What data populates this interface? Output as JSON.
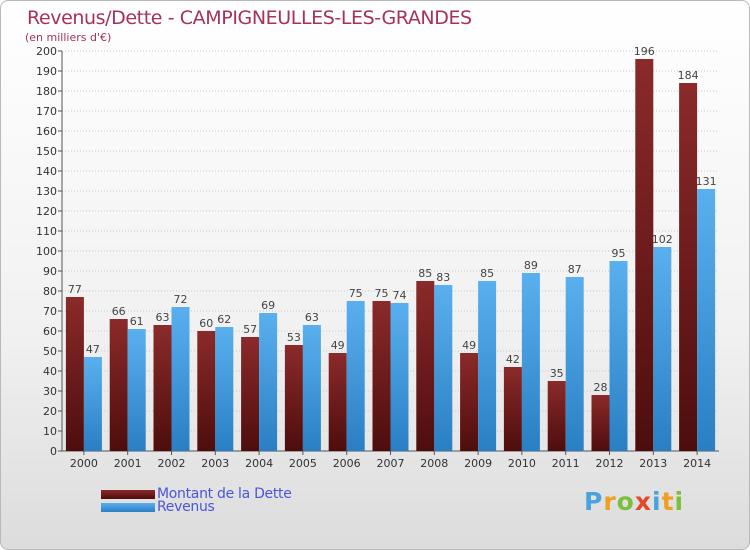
{
  "title": "Revenus/Dette - CAMPIGNEULLES-LES-GRANDES",
  "subtitle": "(en milliers d'€)",
  "colors": {
    "dette": "#7a1f1f",
    "revenus": "#3d9be0",
    "title": "#a6315a",
    "legend_text": "#4b55d8"
  },
  "logo": {
    "text": "Proxiti",
    "letters": [
      {
        "ch": "P",
        "color": "#4aa3df"
      },
      {
        "ch": "r",
        "color": "#f0a020"
      },
      {
        "ch": "o",
        "color": "#7cbf3a"
      },
      {
        "ch": "x",
        "color": "#e04a2a"
      },
      {
        "ch": "i",
        "color": "#4aa3df"
      },
      {
        "ch": "t",
        "color": "#f0a020"
      },
      {
        "ch": "i",
        "color": "#7cbf3a"
      }
    ]
  },
  "chart_data": {
    "type": "bar",
    "title": "Revenus/Dette - CAMPIGNEULLES-LES-GRANDES",
    "ylabel": "(en milliers d'€)",
    "ylim": [
      0,
      200
    ],
    "yticks": [
      0,
      10,
      20,
      30,
      40,
      50,
      60,
      70,
      80,
      90,
      100,
      110,
      120,
      130,
      140,
      150,
      160,
      170,
      180,
      190,
      200
    ],
    "grid": "horizontal dotted",
    "legend_position": "bottom-left",
    "categories": [
      "2000",
      "2001",
      "2002",
      "2003",
      "2004",
      "2005",
      "2006",
      "2007",
      "2008",
      "2009",
      "2010",
      "2011",
      "2012",
      "2013",
      "2014"
    ],
    "series": [
      {
        "name": "Montant de la Dette",
        "values": [
          77,
          66,
          63,
          60,
          57,
          53,
          49,
          75,
          85,
          49,
          42,
          35,
          28,
          196,
          184
        ]
      },
      {
        "name": "Revenus",
        "values": [
          47,
          61,
          72,
          62,
          69,
          63,
          75,
          74,
          83,
          85,
          89,
          87,
          95,
          102,
          131
        ]
      }
    ]
  }
}
